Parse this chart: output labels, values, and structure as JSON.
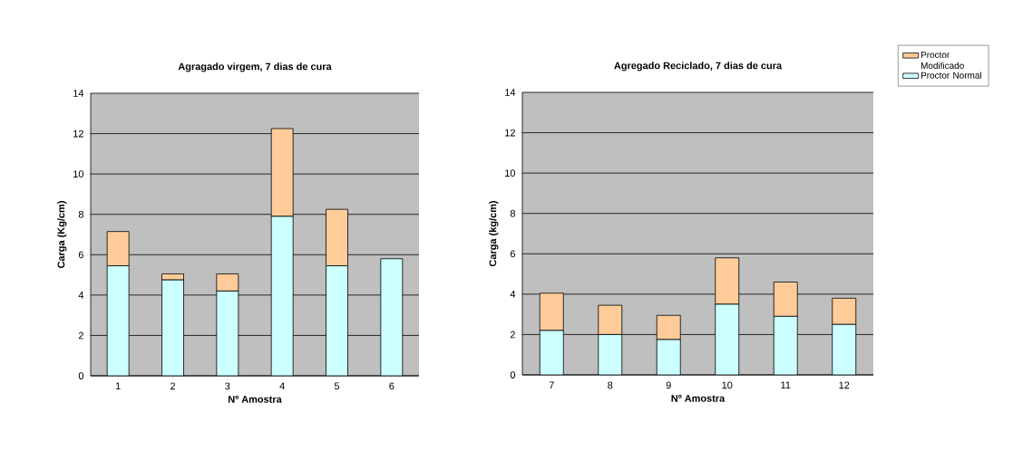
{
  "chart_data": [
    {
      "type": "bar",
      "title": "Agragado virgem, 7 dias de cura",
      "xlabel": "Nº Amostra",
      "ylabel": "Carga (Kg/cm)",
      "categories": [
        "1",
        "2",
        "3",
        "4",
        "5",
        "6"
      ],
      "stacked": true,
      "ylim": [
        0,
        14
      ],
      "yticks": [
        0,
        2,
        4,
        6,
        8,
        10,
        12,
        14
      ],
      "grid": "y",
      "series": [
        {
          "color": "#ccffff",
          "values": [
            5.45,
            4.75,
            4.2,
            7.9,
            5.45,
            5.8
          ]
        },
        {
          "color": "#ffcc99",
          "values": [
            1.7,
            0.3,
            0.85,
            4.35,
            2.8,
            null
          ]
        }
      ]
    },
    {
      "type": "bar",
      "title": "Agregado Reciclado, 7 dias de cura",
      "xlabel": "Nº Amostra",
      "ylabel": "Carga (kg/cm)",
      "categories": [
        "7",
        "8",
        "9",
        "10",
        "11",
        "12"
      ],
      "stacked": true,
      "ylim": [
        0,
        14
      ],
      "yticks": [
        0,
        2,
        4,
        6,
        8,
        10,
        12,
        14
      ],
      "grid": "y",
      "legend": "right",
      "series": [
        {
          "name": "Proctor Normal",
          "color": "#ccffff",
          "values": [
            2.2,
            2.0,
            1.75,
            3.5,
            2.9,
            2.5
          ]
        },
        {
          "name": "Proctor Modificado",
          "color": "#ffcc99",
          "values": [
            1.85,
            1.45,
            1.2,
            2.3,
            1.7,
            1.3
          ]
        }
      ]
    }
  ]
}
